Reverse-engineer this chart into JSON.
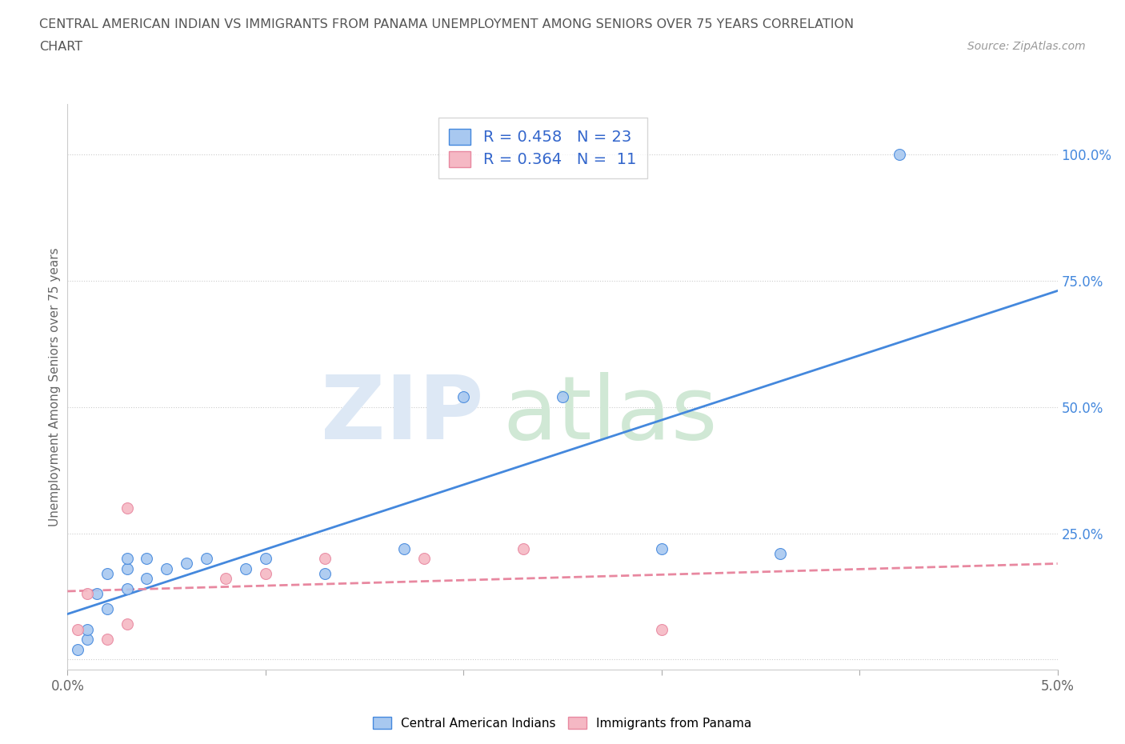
{
  "title_line1": "CENTRAL AMERICAN INDIAN VS IMMIGRANTS FROM PANAMA UNEMPLOYMENT AMONG SENIORS OVER 75 YEARS CORRELATION",
  "title_line2": "CHART",
  "source_text": "Source: ZipAtlas.com",
  "ylabel": "Unemployment Among Seniors over 75 years",
  "xlim": [
    0.0,
    0.05
  ],
  "ylim": [
    -0.02,
    1.1
  ],
  "x_ticks": [
    0.0,
    0.01,
    0.02,
    0.03,
    0.04,
    0.05
  ],
  "y_ticks": [
    0.0,
    0.25,
    0.5,
    0.75,
    1.0
  ],
  "blue_R": 0.458,
  "blue_N": 23,
  "pink_R": 0.364,
  "pink_N": 11,
  "blue_color": "#A8C8F0",
  "pink_color": "#F5B8C4",
  "blue_line_color": "#4488DD",
  "pink_line_color": "#E888A0",
  "blue_scatter_x": [
    0.0005,
    0.001,
    0.001,
    0.0015,
    0.002,
    0.002,
    0.003,
    0.003,
    0.003,
    0.004,
    0.004,
    0.005,
    0.006,
    0.007,
    0.009,
    0.01,
    0.013,
    0.017,
    0.02,
    0.025,
    0.03,
    0.036,
    0.042
  ],
  "blue_scatter_y": [
    0.02,
    0.04,
    0.06,
    0.13,
    0.1,
    0.17,
    0.14,
    0.18,
    0.2,
    0.16,
    0.2,
    0.18,
    0.19,
    0.2,
    0.18,
    0.2,
    0.17,
    0.22,
    0.52,
    0.52,
    0.22,
    0.21,
    1.0
  ],
  "pink_scatter_x": [
    0.0005,
    0.001,
    0.002,
    0.003,
    0.003,
    0.008,
    0.01,
    0.013,
    0.018,
    0.023,
    0.03
  ],
  "pink_scatter_y": [
    0.06,
    0.13,
    0.04,
    0.07,
    0.3,
    0.16,
    0.17,
    0.2,
    0.2,
    0.22,
    0.06
  ],
  "bg_color": "#FFFFFF",
  "grid_color": "#CCCCCC"
}
